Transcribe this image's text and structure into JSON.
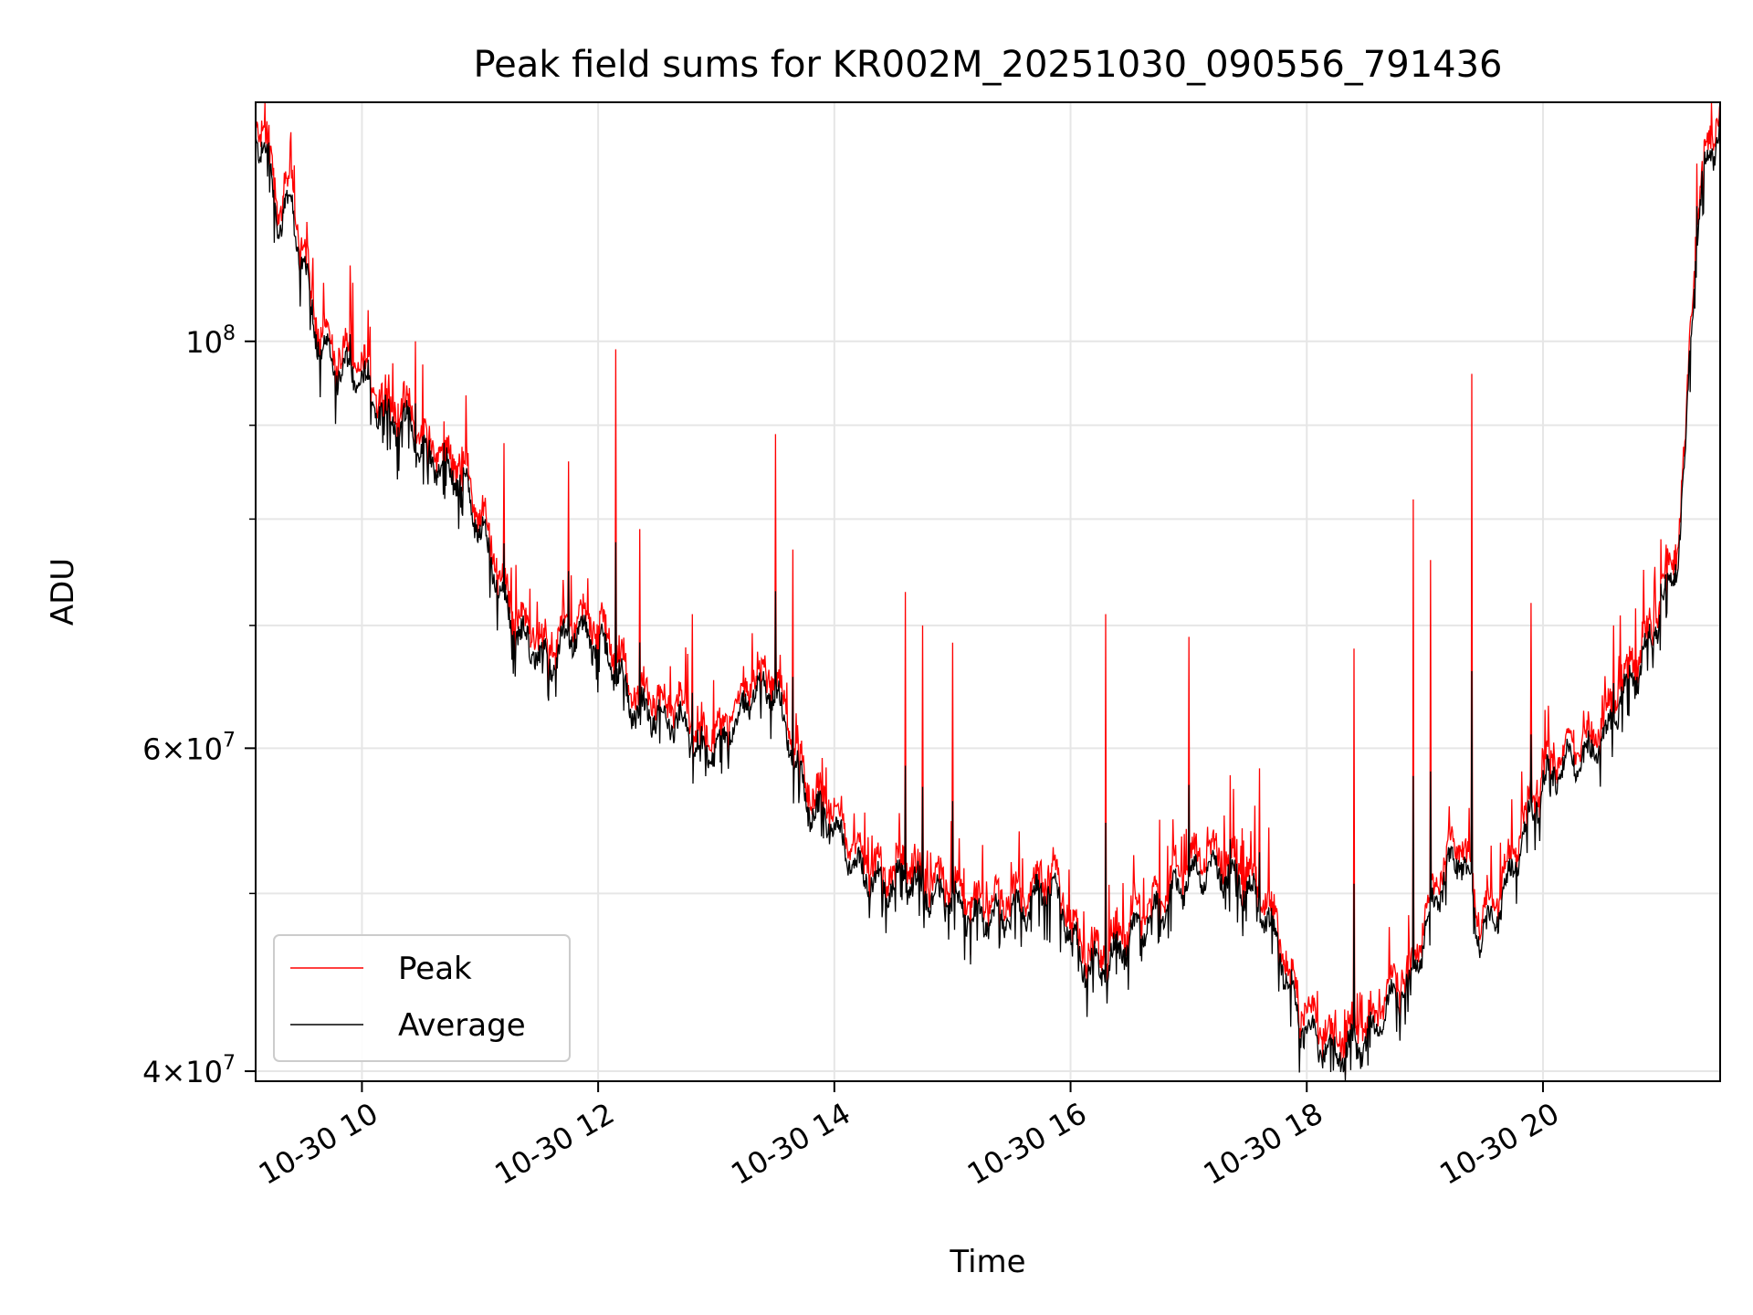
{
  "chart_data": {
    "type": "line",
    "title": "Peak field sums for KR002M_20251030_090556_791436",
    "xlabel": "Time",
    "ylabel": "ADU",
    "yscale": "log",
    "xlim_hours": [
      9.1,
      21.5
    ],
    "ylim": [
      39500000,
      135000000
    ],
    "grid": true,
    "legend_position": "lower-left",
    "x_ticks": [
      {
        "value": 10,
        "label": "10-30 10"
      },
      {
        "value": 12,
        "label": "10-30 12"
      },
      {
        "value": 14,
        "label": "10-30 14"
      },
      {
        "value": 16,
        "label": "10-30 16"
      },
      {
        "value": 18,
        "label": "10-30 18"
      },
      {
        "value": 20,
        "label": "10-30 20"
      }
    ],
    "y_major_ticks": [
      {
        "value": 40000000,
        "mantissa": "4",
        "exponent": "7"
      },
      {
        "value": 60000000,
        "mantissa": "6",
        "exponent": "7"
      },
      {
        "value": 100000000,
        "mantissa": "",
        "exponent": "8"
      }
    ],
    "y_minor_ticks": [
      50000000,
      70000000,
      80000000,
      90000000
    ],
    "series": [
      {
        "name": "Peak",
        "color": "#ff0000"
      },
      {
        "name": "Average",
        "color": "#000000"
      }
    ],
    "average_trend": [
      [
        9.1,
        130000000
      ],
      [
        9.2,
        126000000
      ],
      [
        9.25,
        120000000
      ],
      [
        9.3,
        116000000
      ],
      [
        9.35,
        118000000
      ],
      [
        9.4,
        119000000
      ],
      [
        9.5,
        110000000
      ],
      [
        9.6,
        102000000
      ],
      [
        9.7,
        98000000
      ],
      [
        9.8,
        96500000
      ],
      [
        10.0,
        95500000
      ],
      [
        10.2,
        91000000
      ],
      [
        10.4,
        90000000
      ],
      [
        10.5,
        87000000
      ],
      [
        10.7,
        85500000
      ],
      [
        10.85,
        84000000
      ],
      [
        11.0,
        79000000
      ],
      [
        11.1,
        76000000
      ],
      [
        11.2,
        72000000
      ],
      [
        11.3,
        69500000
      ],
      [
        11.5,
        67500000
      ],
      [
        11.6,
        66500000
      ],
      [
        11.7,
        68500000
      ],
      [
        11.8,
        69500000
      ],
      [
        12.0,
        68500000
      ],
      [
        12.2,
        65500000
      ],
      [
        12.3,
        63000000
      ],
      [
        12.5,
        62500000
      ],
      [
        12.7,
        62000000
      ],
      [
        12.9,
        59500000
      ],
      [
        13.0,
        60000000
      ],
      [
        13.2,
        62500000
      ],
      [
        13.35,
        65000000
      ],
      [
        13.5,
        64500000
      ],
      [
        13.6,
        61000000
      ],
      [
        13.7,
        58000000
      ],
      [
        13.8,
        55500000
      ],
      [
        14.0,
        54500000
      ],
      [
        14.1,
        53000000
      ],
      [
        14.2,
        51500000
      ],
      [
        14.4,
        50500000
      ],
      [
        14.6,
        51000000
      ],
      [
        14.8,
        50000000
      ],
      [
        15.0,
        49500000
      ],
      [
        15.2,
        48500000
      ],
      [
        15.4,
        48500000
      ],
      [
        15.6,
        49000000
      ],
      [
        15.8,
        50500000
      ],
      [
        15.9,
        49500000
      ],
      [
        16.0,
        47500000
      ],
      [
        16.1,
        46000000
      ],
      [
        16.25,
        45500000
      ],
      [
        16.4,
        46500000
      ],
      [
        16.6,
        48000000
      ],
      [
        16.8,
        49500000
      ],
      [
        17.0,
        51000000
      ],
      [
        17.2,
        51500000
      ],
      [
        17.4,
        51000000
      ],
      [
        17.6,
        49500000
      ],
      [
        17.75,
        47000000
      ],
      [
        17.85,
        44500000
      ],
      [
        17.95,
        42500000
      ],
      [
        18.1,
        41500000
      ],
      [
        18.3,
        41000000
      ],
      [
        18.5,
        41500000
      ],
      [
        18.7,
        43500000
      ],
      [
        18.9,
        45000000
      ],
      [
        19.0,
        47500000
      ],
      [
        19.1,
        50000000
      ],
      [
        19.2,
        51500000
      ],
      [
        19.3,
        52500000
      ],
      [
        19.4,
        50000000
      ],
      [
        19.45,
        47500000
      ],
      [
        19.55,
        48000000
      ],
      [
        19.7,
        50500000
      ],
      [
        19.85,
        54000000
      ],
      [
        20.0,
        57500000
      ],
      [
        20.2,
        59000000
      ],
      [
        20.4,
        59500000
      ],
      [
        20.55,
        61000000
      ],
      [
        20.65,
        64000000
      ],
      [
        20.8,
        66000000
      ],
      [
        20.95,
        70000000
      ],
      [
        21.05,
        73000000
      ],
      [
        21.15,
        77000000
      ],
      [
        21.2,
        85000000
      ],
      [
        21.25,
        100000000
      ],
      [
        21.3,
        115000000
      ],
      [
        21.35,
        122000000
      ],
      [
        21.45,
        128000000
      ],
      [
        21.5,
        133000000
      ]
    ],
    "peak_spikes": [
      [
        9.9,
        110000000
      ],
      [
        10.05,
        104000000
      ],
      [
        10.45,
        100000000
      ],
      [
        11.2,
        88000000
      ],
      [
        11.75,
        86000000
      ],
      [
        12.15,
        99000000
      ],
      [
        12.35,
        79000000
      ],
      [
        12.8,
        71000000
      ],
      [
        13.5,
        89000000
      ],
      [
        13.65,
        77000000
      ],
      [
        14.6,
        73000000
      ],
      [
        14.75,
        70000000
      ],
      [
        15.0,
        68500000
      ],
      [
        15.85,
        53000000
      ],
      [
        16.3,
        71000000
      ],
      [
        17.0,
        69000000
      ],
      [
        17.35,
        58000000
      ],
      [
        17.6,
        58500000
      ],
      [
        18.4,
        68000000
      ],
      [
        18.9,
        82000000
      ],
      [
        19.05,
        76000000
      ],
      [
        19.4,
        96000000
      ],
      [
        19.9,
        72000000
      ],
      [
        20.6,
        70000000
      ],
      [
        21.0,
        78000000
      ],
      [
        21.3,
        125000000
      ]
    ]
  }
}
